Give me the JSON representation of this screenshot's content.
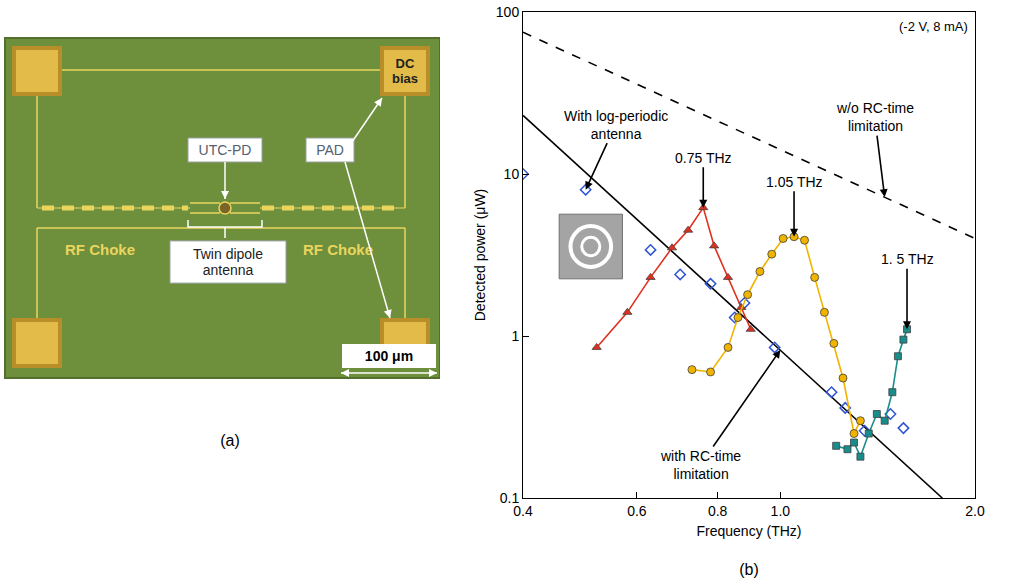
{
  "panel_a": {
    "label": "(a)",
    "utc_pd": "UTC-PD",
    "dc_bias": "DC bias",
    "pad": "PAD",
    "rf_choke_left": "RF Choke",
    "rf_choke_right": "RF Choke",
    "antenna": "Twin dipole antenna",
    "scale_bar": "100 μm"
  },
  "chart_data": {
    "type": "line",
    "title": "(b)",
    "subtitle": "(-2 V, 8 mA)",
    "xlabel": "Frequency (THz)",
    "ylabel": "Detected power (μW)",
    "log": true,
    "grid": false,
    "xlim": [
      0.4,
      2.0
    ],
    "xticks": [
      0.4,
      0.6,
      0.8,
      {
        "value": 1,
        "label": "1.0"
      },
      {
        "value": 2,
        "label": "2.0"
      }
    ],
    "ylim": [
      0.1,
      100
    ],
    "yticks": [
      0.1,
      1,
      10,
      100
    ],
    "series": [
      {
        "type": "line",
        "color": "#000000",
        "marker": "none",
        "line_style": "dashed",
        "x": [
          0.4,
          2.0
        ],
        "values": [
          75,
          4
        ]
      },
      {
        "type": "line",
        "color": "#000000",
        "marker": "none",
        "line_style": "solid",
        "x": [
          0.4,
          1.78
        ],
        "values": [
          23,
          0.1
        ]
      },
      {
        "type": "scatter",
        "color": "#2f55d4",
        "marker": "diamond-open",
        "line_style": "none",
        "x": [
          0.4,
          0.5,
          0.63,
          0.7,
          0.78,
          0.85,
          0.88,
          0.98,
          1.2,
          1.26,
          1.35,
          1.48,
          1.55
        ],
        "values": [
          10,
          8,
          3.4,
          2.4,
          2.1,
          1.3,
          1.6,
          0.85,
          0.45,
          0.36,
          0.26,
          0.33,
          0.27
        ]
      },
      {
        "type": "line",
        "color": "#e0301e",
        "marker": "triangle-up",
        "line_style": "solid",
        "x": [
          0.52,
          0.58,
          0.63,
          0.68,
          0.72,
          0.76,
          0.79,
          0.83,
          0.87,
          0.9
        ],
        "values": [
          0.85,
          1.4,
          2.3,
          3.5,
          4.5,
          6.2,
          3.6,
          2.3,
          1.5,
          1.1
        ]
      },
      {
        "type": "line",
        "color": "#f0b400",
        "marker": "circle",
        "line_style": "solid",
        "x": [
          0.73,
          0.78,
          0.83,
          0.86,
          0.89,
          0.93,
          0.97,
          1.01,
          1.05,
          1.09,
          1.13,
          1.17,
          1.21,
          1.25,
          1.3,
          1.33
        ],
        "values": [
          0.62,
          0.6,
          0.85,
          1.3,
          1.8,
          2.5,
          3.2,
          4.0,
          4.1,
          3.9,
          2.3,
          1.4,
          0.9,
          0.55,
          0.25,
          0.3
        ]
      },
      {
        "type": "line",
        "color": "#1b8c8c",
        "marker": "square",
        "line_style": "solid",
        "x": [
          1.22,
          1.27,
          1.3,
          1.33,
          1.37,
          1.41,
          1.45,
          1.49,
          1.52,
          1.55,
          1.57
        ],
        "values": [
          0.21,
          0.2,
          0.22,
          0.18,
          0.25,
          0.33,
          0.3,
          0.45,
          0.75,
          0.95,
          1.1
        ]
      }
    ],
    "annotations": [
      {
        "text": "With log-periodic antenna",
        "x": 0.5,
        "y": 8
      },
      {
        "text": "w/o RC-time limitation",
        "x": 1.45,
        "y": 7.2
      },
      {
        "text": "with RC-time limitation",
        "x": 1.0,
        "y": 0.82
      },
      {
        "text": "0.75 THz",
        "x": 0.76,
        "y": 6.2
      },
      {
        "text": "1.05 THz",
        "x": 1.05,
        "y": 4.1
      },
      {
        "text": "1. 5 THz",
        "x": 1.57,
        "y": 1.1
      }
    ]
  }
}
